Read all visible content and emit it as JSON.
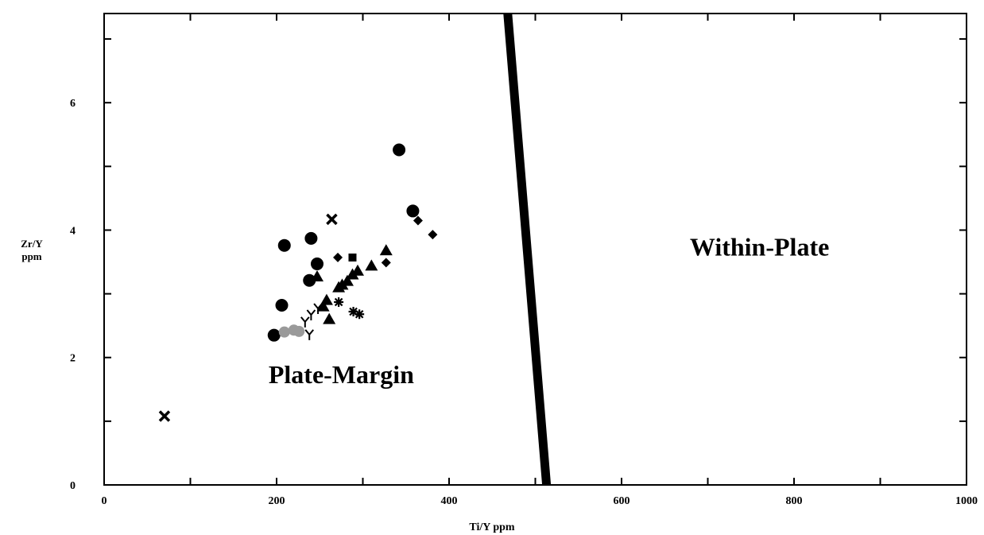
{
  "chart_data": {
    "type": "scatter",
    "title": "",
    "xlabel": "Ti/Y  ppm",
    "ylabel": [
      "Zr/Y",
      "ppm"
    ],
    "xlim": [
      0,
      1000
    ],
    "ylim": [
      0,
      7.4
    ],
    "x_tick_labels": [
      {
        "value": 0,
        "label": "0"
      },
      {
        "value": 200,
        "label": "200"
      },
      {
        "value": 400,
        "label": "400"
      },
      {
        "value": 600,
        "label": "600"
      },
      {
        "value": 800,
        "label": "800"
      },
      {
        "value": 1000,
        "label": "1000"
      }
    ],
    "y_tick_labels": [
      {
        "value": 0,
        "label": "0"
      },
      {
        "value": 2,
        "label": "2"
      },
      {
        "value": 4,
        "label": "4"
      },
      {
        "value": 6,
        "label": "6"
      }
    ],
    "x_minor_ticks": [
      100,
      300,
      500,
      700,
      900
    ],
    "y_minor_ticks": [
      1,
      3,
      5,
      7
    ],
    "grid": false,
    "boundary_line": {
      "points": [
        [
          468,
          7.4
        ],
        [
          513,
          0
        ]
      ]
    },
    "regions": [
      {
        "label": "Plate-Margin",
        "x": 275,
        "y": 1.6
      },
      {
        "label": "Within-Plate",
        "x": 760,
        "y": 3.6
      }
    ],
    "marker_color": "#000000",
    "highlight_color": "#9a9a9a",
    "points": [
      {
        "marker": "circle",
        "x": 197,
        "y": 2.35
      },
      {
        "marker": "circle",
        "x": 206,
        "y": 2.82
      },
      {
        "marker": "circle",
        "x": 209,
        "y": 3.76
      },
      {
        "marker": "circle",
        "x": 238,
        "y": 3.21
      },
      {
        "marker": "circle",
        "x": 240,
        "y": 3.87
      },
      {
        "marker": "circle",
        "x": 247,
        "y": 3.47
      },
      {
        "marker": "circle",
        "x": 342,
        "y": 5.26
      },
      {
        "marker": "circle",
        "x": 358,
        "y": 4.3
      },
      {
        "marker": "triangle",
        "x": 247,
        "y": 3.27
      },
      {
        "marker": "triangle",
        "x": 254,
        "y": 2.8
      },
      {
        "marker": "triangle",
        "x": 258,
        "y": 2.9
      },
      {
        "marker": "triangle",
        "x": 261,
        "y": 2.6
      },
      {
        "marker": "triangle",
        "x": 272,
        "y": 3.1
      },
      {
        "marker": "triangle",
        "x": 276,
        "y": 3.14
      },
      {
        "marker": "triangle",
        "x": 282,
        "y": 3.2
      },
      {
        "marker": "triangle",
        "x": 288,
        "y": 3.3
      },
      {
        "marker": "triangle",
        "x": 294,
        "y": 3.36
      },
      {
        "marker": "triangle",
        "x": 310,
        "y": 3.44
      },
      {
        "marker": "triangle",
        "x": 327,
        "y": 3.68
      },
      {
        "marker": "diamond",
        "x": 271,
        "y": 3.57
      },
      {
        "marker": "diamond",
        "x": 327,
        "y": 3.49
      },
      {
        "marker": "diamond",
        "x": 364,
        "y": 4.15
      },
      {
        "marker": "diamond",
        "x": 381,
        "y": 3.93
      },
      {
        "marker": "square",
        "x": 288,
        "y": 3.57
      },
      {
        "marker": "cross",
        "x": 70,
        "y": 1.08
      },
      {
        "marker": "cross",
        "x": 264,
        "y": 4.17
      },
      {
        "marker": "asterisk",
        "x": 272,
        "y": 2.87
      },
      {
        "marker": "asterisk",
        "x": 289,
        "y": 2.72
      },
      {
        "marker": "asterisk",
        "x": 296,
        "y": 2.68
      },
      {
        "marker": "y-mark",
        "x": 233,
        "y": 2.56
      },
      {
        "marker": "y-mark",
        "x": 240,
        "y": 2.67
      },
      {
        "marker": "y-mark",
        "x": 248,
        "y": 2.77
      },
      {
        "marker": "y-mark",
        "x": 238,
        "y": 2.36
      },
      {
        "marker": "shaded-circle",
        "x": 209,
        "y": 2.4
      },
      {
        "marker": "shaded-circle",
        "x": 220,
        "y": 2.43
      },
      {
        "marker": "shaded-circle",
        "x": 226,
        "y": 2.41
      }
    ]
  }
}
